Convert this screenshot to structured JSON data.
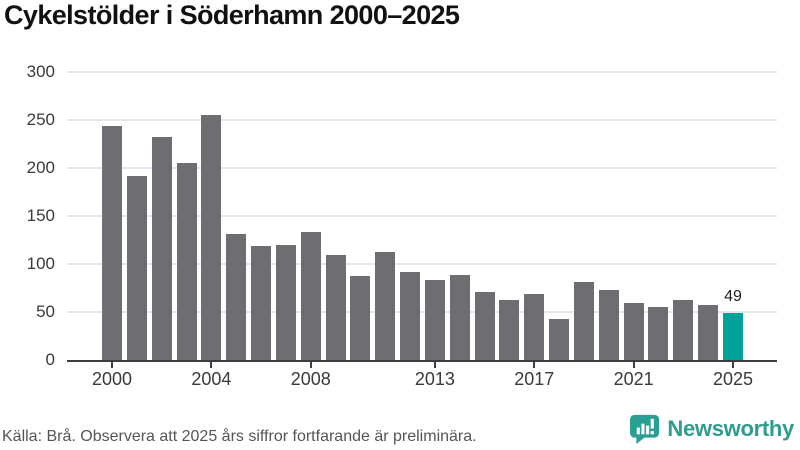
{
  "chart_data": {
    "type": "bar",
    "title": "Cykelstölder i Söderhamn 2000–2025",
    "xlabel": "",
    "ylabel": "",
    "categories": [
      "2000",
      "2001",
      "2002",
      "2003",
      "2004",
      "2005",
      "2006",
      "2007",
      "2008",
      "2009",
      "2010",
      "2011",
      "2012",
      "2013",
      "2014",
      "2015",
      "2016",
      "2017",
      "2018",
      "2019",
      "2020",
      "2021",
      "2022",
      "2023",
      "2024",
      "2025"
    ],
    "values": [
      244,
      192,
      232,
      205,
      255,
      131,
      119,
      120,
      133,
      109,
      88,
      113,
      92,
      83,
      89,
      71,
      62,
      69,
      43,
      81,
      73,
      59,
      55,
      63,
      57,
      49
    ],
    "x_tick_labels": [
      "2000",
      "2004",
      "2008",
      "2013",
      "2017",
      "2021",
      "2025"
    ],
    "y_ticks": [
      0,
      50,
      100,
      150,
      200,
      250,
      300
    ],
    "ylim": [
      0,
      300
    ],
    "grid": true,
    "legend_position": "none",
    "highlight_category": "2025",
    "highlight_value_label": "49",
    "bar_color": "#6e6d72",
    "highlight_color": "#00a29a"
  },
  "footer": {
    "source_note": "Källa: Brå. Observera att 2025 års siffror fortfarande är preliminära.",
    "logo_text": "Newsworthy"
  },
  "colors": {
    "background": "#ffffff",
    "title_text": "#111111",
    "axis_line": "#3d3d3d",
    "tick_label": "#3a3a3a",
    "gridline": "#e7e7e7",
    "footer_text": "#555555",
    "logo_teal": "#2f9c8f",
    "logo_icon_teal": "#2aa094"
  }
}
